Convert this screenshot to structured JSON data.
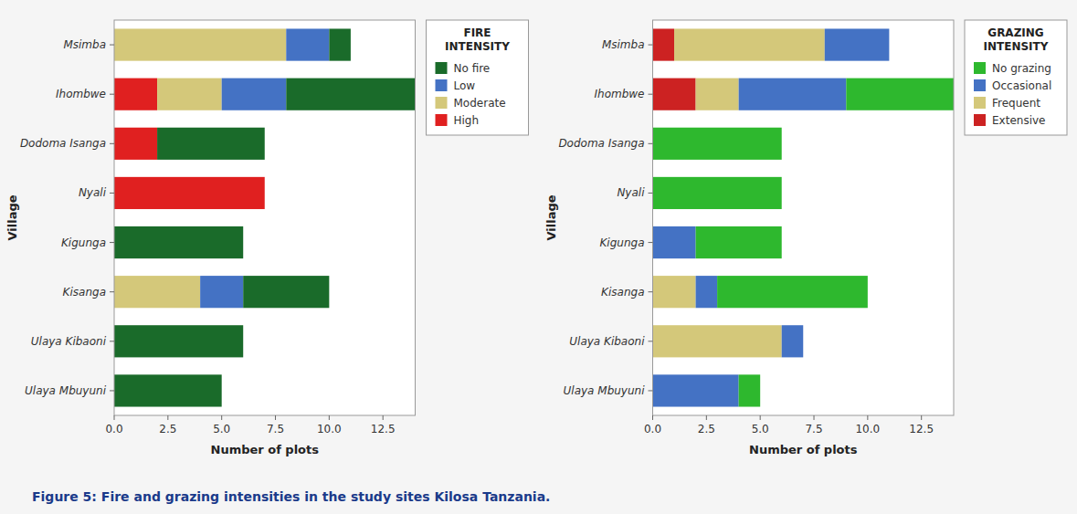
{
  "chart_data": [
    {
      "type": "bar",
      "orientation": "horizontal",
      "stacked": true,
      "grid": false,
      "legend": "right",
      "title": "FIRE\nINTENSITY",
      "x_label": "Number of plots",
      "y_label": "Village",
      "categories": [
        "Msimba",
        "Ihombwe",
        "Dodoma Isanga",
        "Nyali",
        "Kigunga",
        "Kisanga",
        "Ulaya Kibaoni",
        "Ulaya Mbuyuni"
      ],
      "series": [
        {
          "name": "High",
          "color": "#e02020",
          "values": [
            0,
            2,
            2,
            7,
            0,
            0,
            0,
            0
          ]
        },
        {
          "name": "Moderate",
          "color": "#d4c87a",
          "values": [
            8,
            3,
            0,
            0,
            0,
            4,
            0,
            0
          ]
        },
        {
          "name": "Low",
          "color": "#4472c4",
          "values": [
            2,
            3,
            0,
            0,
            0,
            2,
            0,
            0
          ]
        },
        {
          "name": "No fire",
          "color": "#1a6b2a",
          "values": [
            1,
            6,
            5,
            0,
            6,
            4,
            6,
            5
          ]
        }
      ],
      "xlim": [
        0,
        14
      ],
      "xticks": [
        {
          "value": 0,
          "label": "0.0"
        },
        2.5,
        {
          "value": 5,
          "label": "5.0"
        },
        7.5,
        {
          "value": 10,
          "label": "10.0"
        },
        12.5
      ]
    },
    {
      "type": "bar",
      "orientation": "horizontal",
      "stacked": true,
      "grid": false,
      "legend": "right",
      "title": "GRAZING\nINTENSITY",
      "x_label": "Number of plots",
      "y_label": "Village",
      "categories": [
        "Msimba",
        "Ihombwe",
        "Dodoma Isanga",
        "Nyali",
        "Kigunga",
        "Kisanga",
        "Ulaya Kibaoni",
        "Ulaya Mbuyuni"
      ],
      "series": [
        {
          "name": "Extensive",
          "color": "#cc2222",
          "values": [
            1,
            2,
            0,
            0,
            0,
            0,
            0,
            0
          ]
        },
        {
          "name": "Frequent",
          "color": "#d4c87a",
          "values": [
            7,
            2,
            0,
            0,
            0,
            2,
            6,
            0
          ]
        },
        {
          "name": "Occasional",
          "color": "#4472c4",
          "values": [
            3,
            5,
            0,
            0,
            2,
            1,
            1,
            4
          ]
        },
        {
          "name": "No grazing",
          "color": "#2eb82e",
          "values": [
            0,
            5,
            6,
            6,
            4,
            7,
            0,
            1
          ]
        }
      ],
      "xlim": [
        0,
        14
      ],
      "xticks": [
        {
          "value": 0,
          "label": "0.0"
        },
        2.5,
        {
          "value": 5,
          "label": "5.0"
        },
        7.5,
        {
          "value": 10,
          "label": "10.0"
        },
        12.5
      ]
    }
  ],
  "caption": "Figure 5: Fire and grazing intensities in the study sites Kilosa Tanzania."
}
